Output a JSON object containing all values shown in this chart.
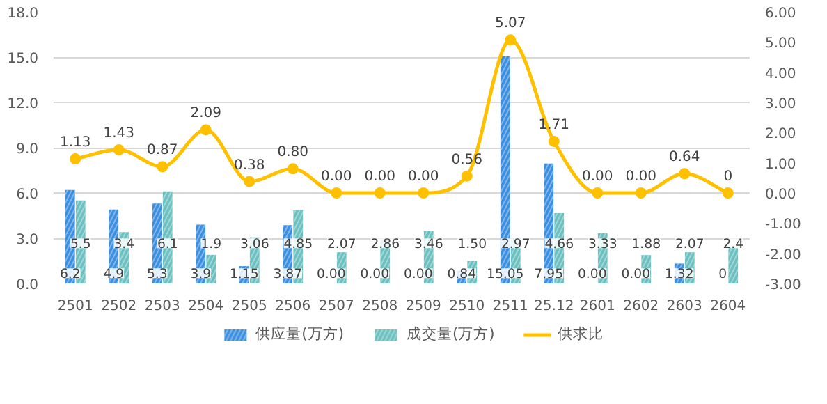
{
  "chart_data": {
    "type": "bar",
    "categories": [
      "2501",
      "2502",
      "2503",
      "2504",
      "2505",
      "2506",
      "2507",
      "2508",
      "2509",
      "2510",
      "2511",
      "25.12",
      "2601",
      "2602",
      "2603",
      "2604"
    ],
    "series": [
      {
        "name": "供应量(万方)",
        "color": "#3c8fdf",
        "values": [
          6.2,
          4.9,
          5.3,
          3.9,
          1.15,
          3.87,
          0.0,
          0.0,
          0.0,
          0.84,
          15.05,
          7.95,
          0.0,
          0.0,
          1.32,
          0
        ],
        "value_labels": [
          "6.2",
          "4.9",
          "5.3",
          "3.9",
          "1.15",
          "3.87",
          "0.00",
          "0.00",
          "0.00",
          "0.84",
          "15.05",
          "7.95",
          "0.00",
          "0.00",
          "1.32",
          "0"
        ]
      },
      {
        "name": "成交量(万方)",
        "color": "#6cc0c0",
        "values": [
          5.5,
          3.4,
          6.1,
          1.9,
          3.06,
          4.85,
          2.07,
          2.86,
          3.46,
          1.5,
          2.97,
          4.66,
          3.33,
          1.88,
          2.07,
          2.4
        ],
        "value_labels": [
          "5.5",
          "3.4",
          "6.1",
          "1.9",
          "3.06",
          "4.85",
          "2.07",
          "2.86",
          "3.46",
          "1.50",
          "2.97",
          "4.66",
          "3.33",
          "1.88",
          "2.07",
          "2.4"
        ]
      },
      {
        "name": "供求比",
        "type": "line",
        "axis": "y2",
        "color": "#ffc000",
        "values": [
          1.13,
          1.43,
          0.87,
          2.09,
          0.38,
          0.8,
          0.0,
          0.0,
          0.0,
          0.56,
          5.07,
          1.71,
          0.0,
          0.0,
          0.64,
          0
        ],
        "value_labels": [
          "1.13",
          "1.43",
          "0.87",
          "2.09",
          "0.38",
          "0.80",
          "0.00",
          "0.00",
          "0.00",
          "0.56",
          "5.07",
          "1.71",
          "0.00",
          "0.00",
          "0.64",
          "0"
        ]
      }
    ],
    "ylim": [
      0,
      18
    ],
    "yticks": [
      {
        "value": 0,
        "label": "0.0"
      },
      {
        "value": 3,
        "label": "3.0"
      },
      {
        "value": 6,
        "label": "6.0"
      },
      {
        "value": 9,
        "label": "9.0"
      },
      {
        "value": 12,
        "label": "12.0"
      },
      {
        "value": 15,
        "label": "15.0"
      },
      {
        "value": 18,
        "label": "18.0"
      }
    ],
    "y2lim": [
      -3,
      6
    ],
    "y2ticks": [
      {
        "value": -3,
        "label": "-3.00"
      },
      {
        "value": -2,
        "label": "-2.00"
      },
      {
        "value": -1,
        "label": "-1.00"
      },
      {
        "value": 0,
        "label": "0.00"
      },
      {
        "value": 1,
        "label": "1.00"
      },
      {
        "value": 2,
        "label": "2.00"
      },
      {
        "value": 3,
        "label": "3.00"
      },
      {
        "value": 4,
        "label": "4.00"
      },
      {
        "value": 5,
        "label": "5.00"
      },
      {
        "value": 6,
        "label": "6.00"
      }
    ],
    "grid": "y",
    "legend": "bottom",
    "marker": "circle",
    "line_style": "solid"
  }
}
